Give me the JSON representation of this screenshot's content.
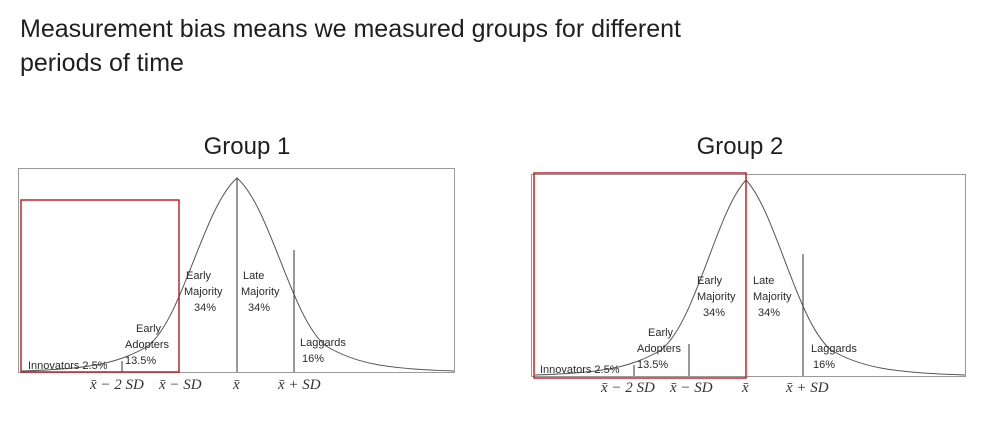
{
  "slide": {
    "title_line1": "Measurement bias means we measured groups for different",
    "title_line2": "periods of time"
  },
  "diagrams": [
    {
      "title": "Group 1",
      "labels": {
        "innovators": "Innovators 2.5%",
        "early_adopters_1": "Early",
        "early_adopters_2": "Adopters",
        "early_adopters_pct": "13.5%",
        "early_majority_1": "Early",
        "early_majority_2": "Majority",
        "early_majority_pct": "34%",
        "late_majority_1": "Late",
        "late_majority_2": "Majority",
        "late_majority_pct": "34%",
        "laggards": "Laggards",
        "laggards_pct": "16%"
      },
      "axis": {
        "minus2sd": "x̄ − 2 SD",
        "minus1sd": "x̄ − SD",
        "mean": "x̄",
        "plus1sd": "x̄ + SD"
      }
    },
    {
      "title": "Group 2",
      "labels": {
        "innovators": "Innovators 2.5%",
        "early_adopters_1": "Early",
        "early_adopters_2": "Adopters",
        "early_adopters_pct": "13.5%",
        "early_majority_1": "Early",
        "early_majority_2": "Majority",
        "early_majority_pct": "34%",
        "late_majority_1": "Late",
        "late_majority_2": "Majority",
        "late_majority_pct": "34%",
        "laggards": "Laggards",
        "laggards_pct": "16%"
      },
      "axis": {
        "minus2sd": "x̄ − 2 SD",
        "minus1sd": "x̄ − SD",
        "mean": "x̄",
        "plus1sd": "x̄ + SD"
      }
    }
  ],
  "colors": {
    "highlight_box": "#c0141c",
    "frame": "#9a9a9a",
    "curve": "#555555"
  }
}
